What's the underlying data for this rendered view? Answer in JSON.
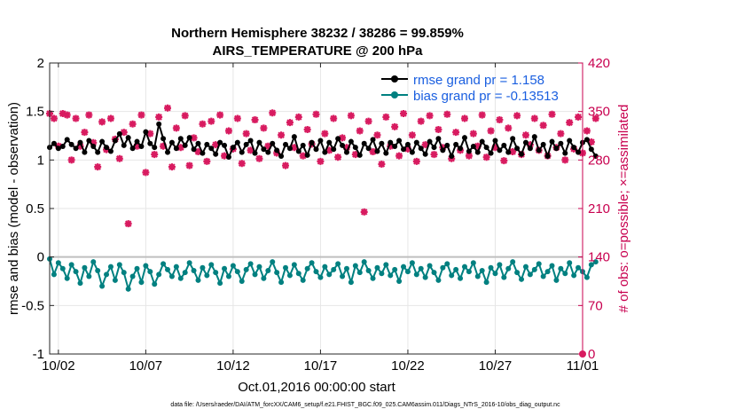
{
  "chart_data": {
    "type": "line",
    "title": "Northern Hemisphere 38232 / 38286 = 99.859%",
    "subtitle": "AIRS_TEMPERATURE @ 200 hPa",
    "xlabel": "Oct.01,2016 00:00:00 start",
    "ylabel_left": "rmse and bias (model - observation)",
    "ylabel_right": "# of obs: o=possible; ×=assimilated",
    "x_range_days": [
      0.5,
      31
    ],
    "ylim_left": [
      -1,
      2
    ],
    "ylim_right": [
      0,
      420
    ],
    "x_ticks": [
      {
        "day": 1,
        "label": "10/02"
      },
      {
        "day": 6,
        "label": "10/07"
      },
      {
        "day": 11,
        "label": "10/12"
      },
      {
        "day": 16,
        "label": "10/17"
      },
      {
        "day": 21,
        "label": "10/22"
      },
      {
        "day": 26,
        "label": "10/27"
      },
      {
        "day": 31,
        "label": "11/01"
      }
    ],
    "y_ticks_left": [
      {
        "value": -1,
        "label": "-1"
      },
      {
        "value": -0.5,
        "label": "-0.5"
      },
      {
        "value": 0,
        "label": "0"
      },
      {
        "value": 0.5,
        "label": "0.5"
      },
      {
        "value": 1,
        "label": "1"
      },
      {
        "value": 1.5,
        "label": "1.5"
      },
      {
        "value": 2,
        "label": "2"
      }
    ],
    "y_ticks_right": [
      {
        "value": 0,
        "label": "0"
      },
      {
        "value": 70,
        "label": "70"
      },
      {
        "value": 140,
        "label": "140"
      },
      {
        "value": 210,
        "label": "210"
      },
      {
        "value": 280,
        "label": "280"
      },
      {
        "value": 350,
        "label": "350"
      },
      {
        "value": 420,
        "label": "420"
      }
    ],
    "legend_position": "top-right",
    "colors": {
      "rmse": "#000000",
      "bias": "#008080",
      "obs": "#d81b60",
      "zero_line": "#bfbfbf",
      "grid": "#e6e6e6",
      "right_axis": "#c8004f"
    },
    "series": [
      {
        "name": "rmse grand pr = 1.158",
        "axis": "left",
        "style": "line-markers",
        "x_start_day": 0.5,
        "x_step_day": 0.25,
        "values": [
          1.13,
          1.17,
          1.12,
          1.14,
          1.21,
          1.16,
          1.12,
          1.18,
          1.08,
          1.2,
          1.14,
          1.08,
          1.19,
          1.13,
          1.09,
          1.2,
          1.27,
          1.15,
          1.23,
          1.12,
          1.19,
          1.14,
          1.29,
          1.17,
          1.13,
          1.37,
          1.22,
          1.08,
          1.18,
          1.12,
          1.22,
          1.15,
          1.23,
          1.11,
          1.17,
          1.07,
          1.16,
          1.12,
          1.06,
          1.18,
          1.15,
          1.03,
          1.13,
          1.18,
          1.08,
          1.16,
          1.2,
          1.07,
          1.18,
          1.11,
          1.08,
          1.17,
          1.1,
          1.04,
          1.16,
          1.12,
          1.24,
          1.09,
          1.15,
          1.05,
          1.18,
          1.11,
          1.2,
          1.08,
          1.18,
          1.11,
          1.22,
          1.15,
          1.08,
          1.19,
          1.13,
          1.05,
          1.17,
          1.12,
          1.21,
          1.09,
          1.17,
          1.07,
          1.18,
          1.14,
          1.2,
          1.11,
          1.16,
          1.08,
          1.18,
          1.12,
          1.06,
          1.19,
          1.13,
          1.22,
          1.1,
          1.15,
          1.04,
          1.16,
          1.12,
          1.23,
          1.09,
          1.14,
          1.08,
          1.19,
          1.13,
          1.07,
          1.2,
          1.1,
          1.15,
          1.08,
          1.22,
          1.12,
          1.06,
          1.18,
          1.12,
          1.24,
          1.1,
          1.16,
          1.04,
          1.19,
          1.12,
          1.17,
          1.07,
          1.2,
          1.13,
          1.08,
          1.18,
          1.21,
          1.11,
          1.04
        ]
      },
      {
        "name": "bias grand pr = -0.13513",
        "axis": "left",
        "style": "line-markers",
        "x_start_day": 0.5,
        "x_step_day": 0.25,
        "values": [
          -0.02,
          -0.18,
          -0.06,
          -0.12,
          -0.22,
          -0.08,
          -0.15,
          -0.27,
          -0.11,
          -0.2,
          -0.05,
          -0.14,
          -0.3,
          -0.18,
          -0.1,
          -0.24,
          -0.08,
          -0.16,
          -0.33,
          -0.2,
          -0.12,
          -0.26,
          -0.09,
          -0.15,
          -0.28,
          -0.18,
          -0.07,
          -0.13,
          -0.2,
          -0.1,
          -0.22,
          -0.16,
          -0.06,
          -0.14,
          -0.24,
          -0.11,
          -0.19,
          -0.08,
          -0.16,
          -0.27,
          -0.12,
          -0.2,
          -0.09,
          -0.15,
          -0.25,
          -0.13,
          -0.07,
          -0.18,
          -0.1,
          -0.22,
          -0.14,
          -0.05,
          -0.16,
          -0.26,
          -0.11,
          -0.19,
          -0.08,
          -0.17,
          -0.24,
          -0.12,
          -0.06,
          -0.15,
          -0.21,
          -0.1,
          -0.18,
          -0.13,
          -0.07,
          -0.2,
          -0.12,
          -0.26,
          -0.09,
          -0.16,
          -0.05,
          -0.14,
          -0.22,
          -0.11,
          -0.17,
          -0.08,
          -0.19,
          -0.13,
          -0.25,
          -0.1,
          -0.15,
          -0.06,
          -0.18,
          -0.12,
          -0.21,
          -0.09,
          -0.16,
          -0.24,
          -0.11,
          -0.07,
          -0.19,
          -0.13,
          -0.22,
          -0.1,
          -0.15,
          -0.06,
          -0.2,
          -0.14,
          -0.26,
          -0.11,
          -0.17,
          -0.08,
          -0.21,
          -0.12,
          -0.05,
          -0.16,
          -0.23,
          -0.1,
          -0.18,
          -0.13,
          -0.07,
          -0.2,
          -0.15,
          -0.09,
          -0.24,
          -0.12,
          -0.17,
          -0.06,
          -0.19,
          -0.11,
          -0.15,
          -0.21,
          -0.08,
          -0.05
        ]
      },
      {
        "name": "# of obs assimilated",
        "axis": "right",
        "style": "markers",
        "x_start_day": 0.5,
        "x_step_day": 0.25,
        "values": [
          347,
          340,
          300,
          347,
          345,
          280,
          340,
          300,
          320,
          345,
          305,
          270,
          335,
          295,
          340,
          310,
          282,
          320,
          188,
          332,
          300,
          345,
          262,
          318,
          288,
          342,
          300,
          355,
          270,
          326,
          298,
          344,
          272,
          312,
          292,
          332,
          278,
          336,
          302,
          345,
          286,
          322,
          296,
          340,
          275,
          318,
          294,
          338,
          282,
          326,
          300,
          348,
          290,
          316,
          272,
          334,
          298,
          342,
          286,
          324,
          303,
          346,
          278,
          318,
          294,
          340,
          284,
          312,
          298,
          344,
          288,
          322,
          205,
          336,
          292,
          316,
          274,
          342,
          300,
          328,
          286,
          347,
          296,
          316,
          278,
          336,
          302,
          344,
          288,
          324,
          298,
          346,
          282,
          320,
          294,
          340,
          286,
          318,
          300,
          345,
          284,
          322,
          298,
          338,
          279,
          326,
          292,
          344,
          288,
          316,
          302,
          340,
          294,
          330,
          286,
          346,
          298,
          318,
          280,
          334,
          296,
          342,
          290,
          322,
          306,
          340
        ]
      }
    ],
    "footnote": "data file: /Users/raeder/DAI/ATM_forcXX/CAM6_setup/f.e21.FHIST_BGC.f09_025.CAM6assim.011/Diags_NTrS_2016-10/obs_diag_output.nc"
  }
}
